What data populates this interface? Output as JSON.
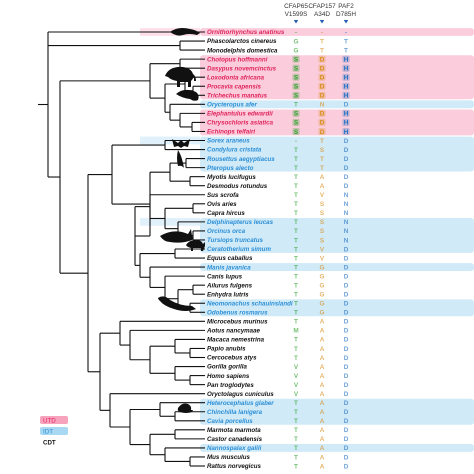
{
  "columns": [
    {
      "gene": "CFAP65",
      "mutation": "V1599S",
      "color": "#2aa12a"
    },
    {
      "gene": "CFAP157",
      "mutation": "A34D",
      "color": "#d98c1a"
    },
    {
      "gene": "PAF2",
      "mutation": "D785H",
      "color": "#1f6fc1"
    }
  ],
  "group_colors": {
    "UTD": {
      "text": "#e0245e",
      "band": "#f7a3bd"
    },
    "IDT": {
      "text": "#2c8fd6",
      "band": "#a9d8f3"
    },
    "CDT": {
      "text": "#111111",
      "band": null
    }
  },
  "species": [
    {
      "name": "Ornithorhynchus anatinus",
      "group": "UTD",
      "res": [
        "-",
        "-",
        "-"
      ]
    },
    {
      "name": "Phascolarctos cinereus",
      "group": "CDT",
      "res": [
        "G",
        "T",
        "T"
      ]
    },
    {
      "name": "Monodelphis domestica",
      "group": "CDT",
      "res": [
        "G",
        "T",
        "T"
      ]
    },
    {
      "name": "Chotopus hoffmanni",
      "group": "UTD",
      "res": [
        "S",
        "D",
        "H"
      ]
    },
    {
      "name": "Dasypus novemcinctus",
      "group": "UTD",
      "res": [
        "S",
        "D",
        "H"
      ]
    },
    {
      "name": "Loxodonta africana",
      "group": "UTD",
      "res": [
        "S",
        "D",
        "H"
      ]
    },
    {
      "name": "Procavia capensis",
      "group": "UTD",
      "res": [
        "S",
        "D",
        "H"
      ]
    },
    {
      "name": "Trichechus manatus",
      "group": "UTD",
      "res": [
        "S",
        "D",
        "H"
      ]
    },
    {
      "name": "Orycteropus afer",
      "group": "IDT",
      "res": [
        "T",
        "N",
        "D"
      ]
    },
    {
      "name": "Elephantulus edwardii",
      "group": "UTD",
      "res": [
        "S",
        "D",
        "H"
      ]
    },
    {
      "name": "Chrysochloris asiatica",
      "group": "UTD",
      "res": [
        "S",
        "D",
        "H"
      ]
    },
    {
      "name": "Echinops telfairi",
      "group": "UTD",
      "res": [
        "S",
        "D",
        "H"
      ]
    },
    {
      "name": "Sorex araneus",
      "group": "IDT",
      "res": [
        "-",
        "T",
        "D"
      ]
    },
    {
      "name": "Condylura cristata",
      "group": "IDT",
      "res": [
        "T",
        "S",
        "D"
      ]
    },
    {
      "name": "Rousettus aegyptiacus",
      "group": "IDT",
      "res": [
        "T",
        "T",
        "D"
      ]
    },
    {
      "name": "Pteropus alecto",
      "group": "IDT",
      "res": [
        "T",
        "T",
        "D"
      ]
    },
    {
      "name": "Myotis lucifugus",
      "group": "CDT",
      "res": [
        "T",
        "A",
        "D"
      ]
    },
    {
      "name": "Desmodus rotundus",
      "group": "CDT",
      "res": [
        "T",
        "A",
        "D"
      ]
    },
    {
      "name": "Sus scrofa",
      "group": "CDT",
      "res": [
        "T",
        "V",
        "N"
      ]
    },
    {
      "name": "Ovis aries",
      "group": "CDT",
      "res": [
        "T",
        "S",
        "N"
      ]
    },
    {
      "name": "Capra hircus",
      "group": "CDT",
      "res": [
        "T",
        "S",
        "N"
      ]
    },
    {
      "name": "Delphinapterus leucas",
      "group": "IDT",
      "res": [
        "T",
        "S",
        "N"
      ]
    },
    {
      "name": "Orcinus orca",
      "group": "IDT",
      "res": [
        "T",
        "S",
        "N"
      ]
    },
    {
      "name": "Tursiops truncatus",
      "group": "IDT",
      "res": [
        "T",
        "S",
        "N"
      ]
    },
    {
      "name": "Ceratotherium simum",
      "group": "IDT",
      "res": [
        "T",
        "V",
        "D"
      ]
    },
    {
      "name": "Equus caballus",
      "group": "CDT",
      "res": [
        "T",
        "V",
        "D"
      ]
    },
    {
      "name": "Manis javanica",
      "group": "IDT",
      "res": [
        "T",
        "G",
        "D"
      ]
    },
    {
      "name": "Canis lupus",
      "group": "CDT",
      "res": [
        "T",
        "G",
        "D"
      ]
    },
    {
      "name": "Ailurus fulgens",
      "group": "CDT",
      "res": [
        "T",
        "G",
        "D"
      ]
    },
    {
      "name": "Enhydra lutris",
      "group": "CDT",
      "res": [
        "T",
        "G",
        "D"
      ]
    },
    {
      "name": "Neomonachus schauinslandi",
      "group": "IDT",
      "res": [
        "T",
        "G",
        "D"
      ]
    },
    {
      "name": "Odobenus rosmarus",
      "group": "IDT",
      "res": [
        "T",
        "G",
        "D"
      ]
    },
    {
      "name": "Microcebus murinus",
      "group": "CDT",
      "res": [
        "T",
        "A",
        "D"
      ]
    },
    {
      "name": "Aotus nancymaae",
      "group": "CDT",
      "res": [
        "M",
        "A",
        "D"
      ]
    },
    {
      "name": "Macaca nemestrina",
      "group": "CDT",
      "res": [
        "T",
        "A",
        "D"
      ]
    },
    {
      "name": "Papio anubis",
      "group": "CDT",
      "res": [
        "T",
        "A",
        "D"
      ]
    },
    {
      "name": "Cercocebus atys",
      "group": "CDT",
      "res": [
        "T",
        "A",
        "D"
      ]
    },
    {
      "name": "Gorilla gorilla",
      "group": "CDT",
      "res": [
        "V",
        "A",
        "D"
      ]
    },
    {
      "name": "Homo sapiens",
      "group": "CDT",
      "res": [
        "V",
        "A",
        "D"
      ]
    },
    {
      "name": "Pan troglodytes",
      "group": "CDT",
      "res": [
        "V",
        "A",
        "D"
      ]
    },
    {
      "name": "Oryctolagus cuniculus",
      "group": "CDT",
      "res": [
        "V",
        "A",
        "D"
      ]
    },
    {
      "name": "Heterocephalus glaber",
      "group": "IDT",
      "res": [
        "T",
        "A",
        "D"
      ]
    },
    {
      "name": "Chinchilla lanigera",
      "group": "IDT",
      "res": [
        "T",
        "A",
        "D"
      ]
    },
    {
      "name": "Cavia porcellus",
      "group": "IDT",
      "res": [
        "T",
        "A",
        "D"
      ]
    },
    {
      "name": "Marmota marmota",
      "group": "CDT",
      "res": [
        "T",
        "A",
        "D"
      ]
    },
    {
      "name": "Castor canadensis",
      "group": "CDT",
      "res": [
        "T",
        "A",
        "D"
      ]
    },
    {
      "name": "Nannospalax galili",
      "group": "IDT",
      "res": [
        "T",
        "A",
        "D"
      ]
    },
    {
      "name": "Mus musculus",
      "group": "CDT",
      "res": [
        "T",
        "A",
        "D"
      ]
    },
    {
      "name": "Rattus norvegicus",
      "group": "CDT",
      "res": [
        "T",
        "A",
        "D"
      ]
    }
  ],
  "legend": [
    {
      "label": "UTD",
      "group": "UTD"
    },
    {
      "label": "IDT",
      "group": "IDT"
    },
    {
      "label": "CDT",
      "group": "CDT"
    }
  ]
}
